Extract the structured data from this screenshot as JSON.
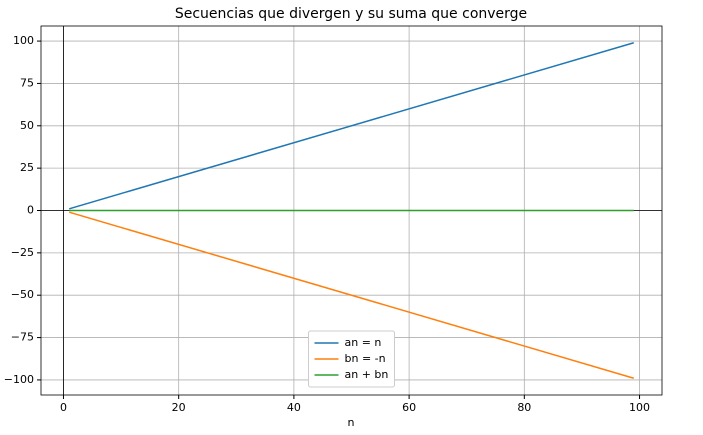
{
  "chart_data": {
    "type": "line",
    "title": "Secuencias que divergen y su suma que converge",
    "x_label": "n",
    "x": [
      1,
      99
    ],
    "series": [
      {
        "name": "an = n",
        "color": "#1f77b4",
        "values": [
          1,
          99
        ]
      },
      {
        "name": "bn = -n",
        "color": "#ff7f0e",
        "values": [
          -1,
          -99
        ]
      },
      {
        "name": "an + bn",
        "color": "#2ca02c",
        "values": [
          0,
          0
        ]
      }
    ],
    "xlim": [
      -3.9,
      103.9
    ],
    "xticks": [
      0,
      20,
      40,
      60,
      80,
      100
    ],
    "ylim": [
      -108.9,
      108.9
    ],
    "yticks": [
      {
        "value": -100,
        "label": "−100"
      },
      {
        "value": -75,
        "label": "−75"
      },
      {
        "value": -50,
        "label": "−50"
      },
      {
        "value": -25,
        "label": "−25"
      },
      0,
      25,
      50,
      75,
      100
    ],
    "grid": true,
    "legend": "lower center"
  }
}
